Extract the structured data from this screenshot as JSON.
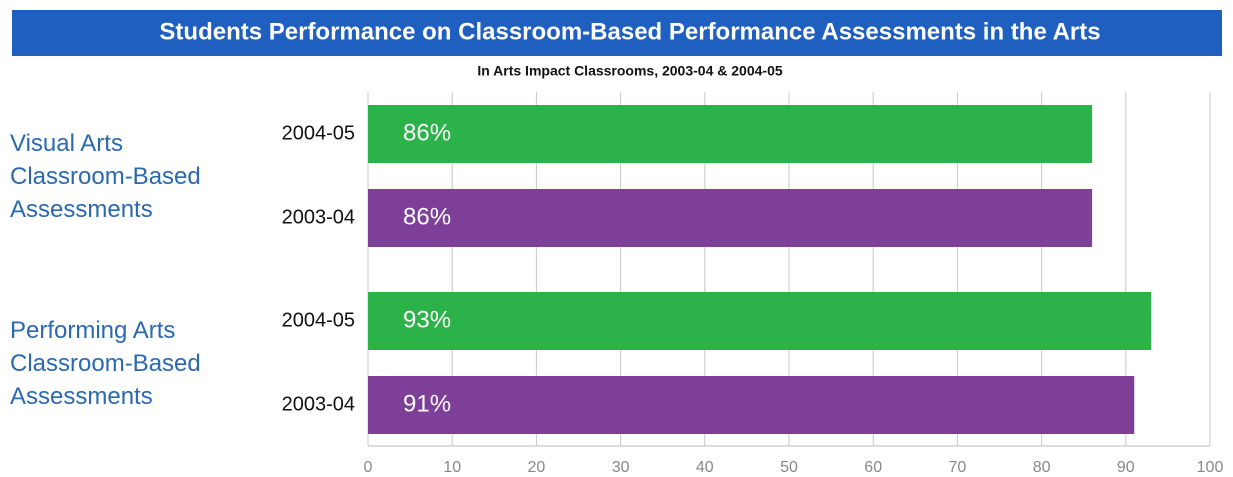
{
  "chart_data": {
    "type": "bar",
    "orientation": "horizontal",
    "title": "Students Performance on Classroom-Based Performance Assessments in the Arts",
    "subtitle": "In Arts Impact Classrooms, 2003-04 & 2004-05",
    "categories": [
      "Visual Arts Classroom-Based Assessments",
      "Performing Arts Classroom-Based Assessments"
    ],
    "series": [
      {
        "name": "2004-05",
        "color": "#2bb34a",
        "values": [
          86,
          93
        ],
        "value_labels": [
          "86%",
          "93%"
        ]
      },
      {
        "name": "2003-04",
        "color": "#7e3f98",
        "values": [
          86,
          91
        ],
        "value_labels": [
          "86%",
          "91%"
        ]
      }
    ],
    "xlim": [
      0,
      100
    ],
    "xticks": [
      0,
      10,
      20,
      30,
      40,
      50,
      60,
      70,
      80,
      90,
      100
    ],
    "grid": true
  }
}
